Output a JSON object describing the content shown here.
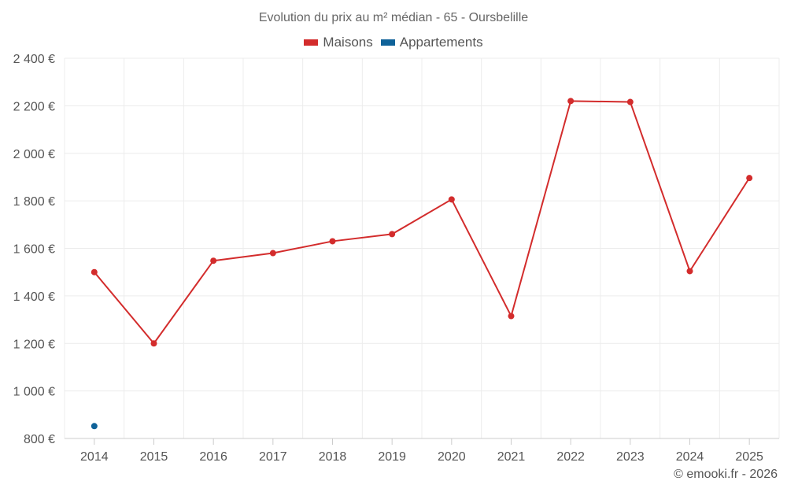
{
  "chart_data": {
    "type": "line",
    "title": "Evolution du prix au m² médian - 65 - Oursbelille",
    "categories": [
      "2014",
      "2015",
      "2016",
      "2017",
      "2018",
      "2019",
      "2020",
      "2021",
      "2022",
      "2023",
      "2024",
      "2025"
    ],
    "series": [
      {
        "name": "Maisons",
        "color": "#d32c2c",
        "values": [
          1500,
          1200,
          1548,
          1580,
          1630,
          1660,
          1806,
          1315,
          2220,
          2216,
          1504,
          1896
        ]
      },
      {
        "name": "Appartements",
        "color": "#0f6299",
        "values": [
          852,
          null,
          null,
          null,
          null,
          null,
          null,
          null,
          null,
          null,
          null,
          null
        ]
      }
    ],
    "ylim": [
      800,
      2400
    ],
    "yticks": [
      800,
      1000,
      1200,
      1400,
      1600,
      1800,
      2000,
      2200,
      2400
    ],
    "ytick_labels": [
      "800 €",
      "1 000 €",
      "1 200 €",
      "1 400 €",
      "1 600 €",
      "1 800 €",
      "2 000 €",
      "2 200 €",
      "2 400 €"
    ],
    "grid": true,
    "legend_position": "top-center"
  },
  "credit": "© emooki.fr - 2026"
}
